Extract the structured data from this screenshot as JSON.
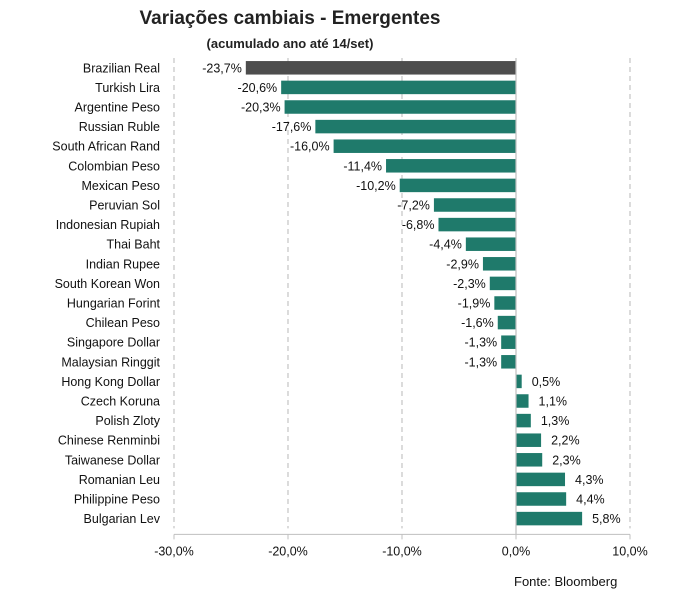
{
  "chart_data": {
    "type": "bar",
    "orientation": "horizontal",
    "title": "Variações cambiais - Emergentes",
    "subtitle": "(acumulado ano até 14/set)",
    "categories": [
      "Brazilian Real",
      "Turkish Lira",
      "Argentine Peso",
      "Russian Ruble",
      "South African Rand",
      "Colombian Peso",
      "Mexican Peso",
      "Peruvian Sol",
      "Indonesian Rupiah",
      "Thai Baht",
      "Indian Rupee",
      "South Korean Won",
      "Hungarian Forint",
      "Chilean Peso",
      "Singapore Dollar",
      "Malaysian Ringgit",
      "Hong Kong Dollar",
      "Czech Koruna",
      "Polish Zloty",
      "Chinese Renminbi",
      "Taiwanese Dollar",
      "Romanian Leu",
      "Philippine Peso",
      "Bulgarian Lev"
    ],
    "values": [
      -23.7,
      -20.6,
      -20.3,
      -17.6,
      -16.0,
      -11.4,
      -10.2,
      -7.2,
      -6.8,
      -4.4,
      -2.9,
      -2.3,
      -1.9,
      -1.6,
      -1.3,
      -1.3,
      0.5,
      1.1,
      1.3,
      2.2,
      2.3,
      4.3,
      4.4,
      5.8
    ],
    "value_labels": [
      "-23,7%",
      "-20,6%",
      "-20,3%",
      "-17,6%",
      "-16,0%",
      "-11,4%",
      "-10,2%",
      "-7,2%",
      "-6,8%",
      "-4,4%",
      "-2,9%",
      "-2,3%",
      "-1,9%",
      "-1,6%",
      "-1,3%",
      "-1,3%",
      "0,5%",
      "1,1%",
      "1,3%",
      "2,2%",
      "2,3%",
      "4,3%",
      "4,4%",
      "5,8%"
    ],
    "highlight": "Brazilian Real",
    "xlim": [
      -30,
      10
    ],
    "xticks": [
      -30,
      -20,
      -10,
      0,
      10
    ],
    "xtick_labels": [
      "-30,0%",
      "-20,0%",
      "-10,0%",
      "0,0%",
      "10,0%"
    ],
    "grid": "vertical dashed",
    "colors": {
      "bar": "#1f7a6b",
      "highlight": "#4d4d4d",
      "grid": "#c8c8c8",
      "axis": "#bfbfbf"
    }
  },
  "source": "Fonte: Bloomberg"
}
